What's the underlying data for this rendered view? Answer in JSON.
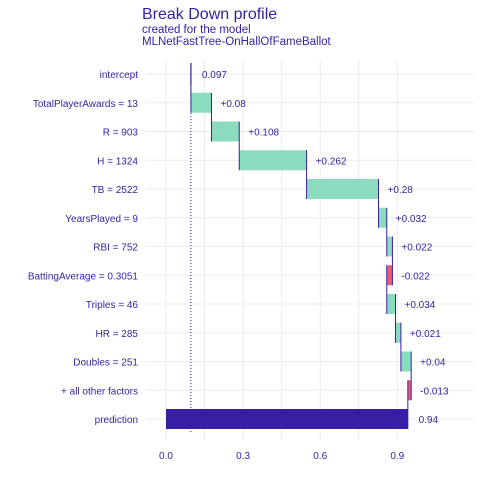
{
  "chart_data": {
    "type": "bar",
    "subtype": "waterfall-breakdown",
    "title": "Break Down profile",
    "subtitle_lines": [
      "created for the  model",
      "MLNetFastTree-OnHallOfFameBallot"
    ],
    "xlim": [
      -0.1,
      1.02
    ],
    "xticks": [
      0.0,
      0.3,
      0.6,
      0.9
    ],
    "xtick_labels": [
      "0.0",
      "0.3",
      "0.6",
      "0.9"
    ],
    "baseline": 0.097,
    "colors": {
      "positive": "#8bdcbe",
      "negative": "#f05a71",
      "prediction": "#371ea3",
      "connector": "#371ea3",
      "text": "#371ea3",
      "grid": "#ebebeb"
    },
    "rows": [
      {
        "variable": "intercept",
        "value": 0.097,
        "label": "0.097",
        "kind": "intercept"
      },
      {
        "variable": "TotalPlayerAwards = 13",
        "value": 0.08,
        "label": "+0.08",
        "kind": "contribution"
      },
      {
        "variable": "R = 903",
        "value": 0.108,
        "label": "+0.108",
        "kind": "contribution"
      },
      {
        "variable": "H = 1324",
        "value": 0.262,
        "label": "+0.262",
        "kind": "contribution"
      },
      {
        "variable": "TB = 2522",
        "value": 0.28,
        "label": "+0.28",
        "kind": "contribution"
      },
      {
        "variable": "YearsPlayed = 9",
        "value": 0.032,
        "label": "+0.032",
        "kind": "contribution"
      },
      {
        "variable": "RBI = 752",
        "value": 0.022,
        "label": "+0.022",
        "kind": "contribution"
      },
      {
        "variable": "BattingAverage = 0.3051",
        "value": -0.022,
        "label": "-0.022",
        "kind": "contribution"
      },
      {
        "variable": "Triples = 46",
        "value": 0.034,
        "label": "+0.034",
        "kind": "contribution"
      },
      {
        "variable": "HR = 285",
        "value": 0.021,
        "label": "+0.021",
        "kind": "contribution"
      },
      {
        "variable": "Doubles = 251",
        "value": 0.04,
        "label": "+0.04",
        "kind": "contribution"
      },
      {
        "variable": "+ all other factors",
        "value": -0.013,
        "label": "-0.013",
        "kind": "contribution"
      },
      {
        "variable": "prediction",
        "value": 0.94,
        "label": "0.94",
        "kind": "prediction"
      }
    ]
  }
}
